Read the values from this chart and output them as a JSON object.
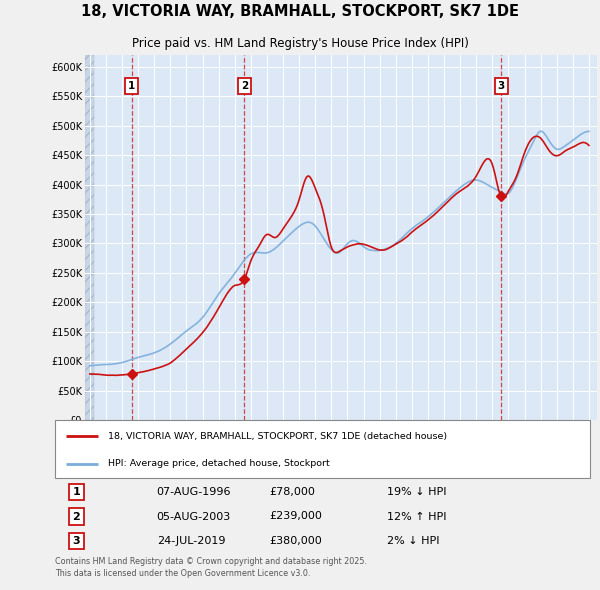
{
  "title1": "18, VICTORIA WAY, BRAMHALL, STOCKPORT, SK7 1DE",
  "title2": "Price paid vs. HM Land Registry's House Price Index (HPI)",
  "legend_line1": "18, VICTORIA WAY, BRAMHALL, STOCKPORT, SK7 1DE (detached house)",
  "legend_line2": "HPI: Average price, detached house, Stockport",
  "footnote": "Contains HM Land Registry data © Crown copyright and database right 2025.\nThis data is licensed under the Open Government Licence v3.0.",
  "transactions": [
    {
      "num": 1,
      "date": "07-AUG-1996",
      "price": 78000,
      "pct": "19%",
      "dir": "↓",
      "year": 1996.6
    },
    {
      "num": 2,
      "date": "05-AUG-2003",
      "price": 239000,
      "pct": "12%",
      "dir": "↑",
      "year": 2003.6
    },
    {
      "num": 3,
      "date": "24-JUL-2019",
      "price": 380000,
      "pct": "2%",
      "dir": "↓",
      "year": 2019.55
    }
  ],
  "hpi_color": "#7aaddc",
  "price_color": "#cc1111",
  "bg_color": "#f0f0f0",
  "plot_bg": "#dce8f5",
  "hatch_bg": "#c8d5e5",
  "ylim": [
    0,
    620000
  ],
  "ytick_vals": [
    0,
    50000,
    100000,
    150000,
    200000,
    250000,
    300000,
    350000,
    400000,
    450000,
    500000,
    550000,
    600000
  ],
  "xlim_left": 1993.7,
  "xlim_right": 2025.5,
  "hatch_end": 1994.25
}
